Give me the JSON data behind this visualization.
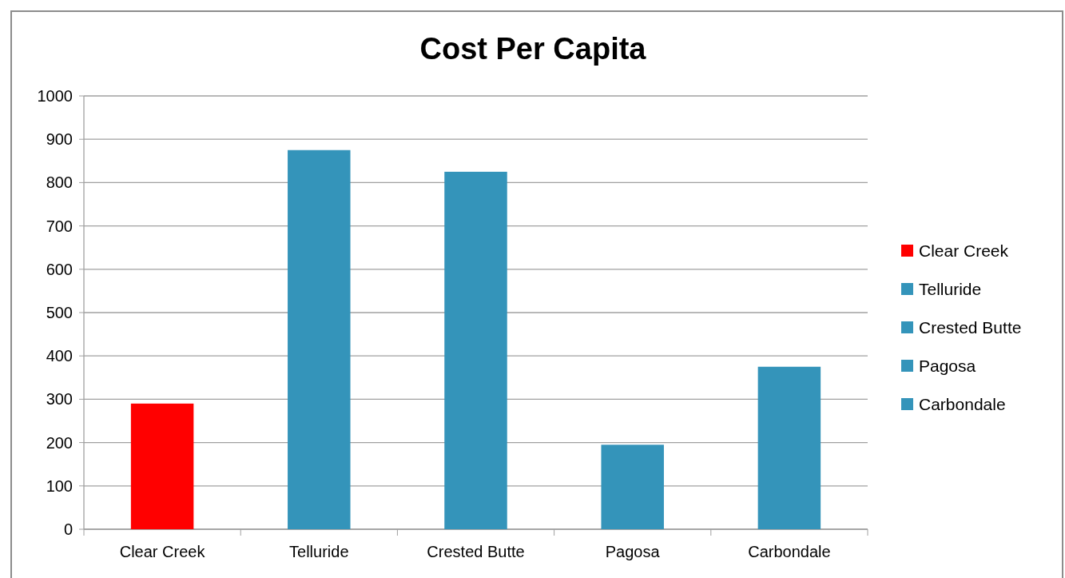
{
  "chart_data": {
    "type": "bar",
    "title": "Cost Per Capita",
    "categories": [
      "Clear Creek",
      "Telluride",
      "Crested Butte",
      "Pagosa",
      "Carbondale"
    ],
    "series": [
      {
        "name": "Clear Creek",
        "color": "#ff0000",
        "values": [
          290,
          null,
          null,
          null,
          null
        ]
      },
      {
        "name": "Telluride",
        "color": "#3494ba",
        "values": [
          null,
          875,
          null,
          null,
          null
        ]
      },
      {
        "name": "Crested Butte",
        "color": "#3494ba",
        "values": [
          null,
          null,
          825,
          null,
          null
        ]
      },
      {
        "name": "Pagosa",
        "color": "#3494ba",
        "values": [
          null,
          null,
          null,
          195,
          null
        ]
      },
      {
        "name": "Carbondale",
        "color": "#3494ba",
        "values": [
          null,
          null,
          null,
          null,
          375
        ]
      }
    ],
    "ylim": [
      0,
      1000
    ],
    "yticks": [
      0,
      100,
      200,
      300,
      400,
      500,
      600,
      700,
      800,
      900,
      1000
    ],
    "grid": "y",
    "legend": "right"
  }
}
